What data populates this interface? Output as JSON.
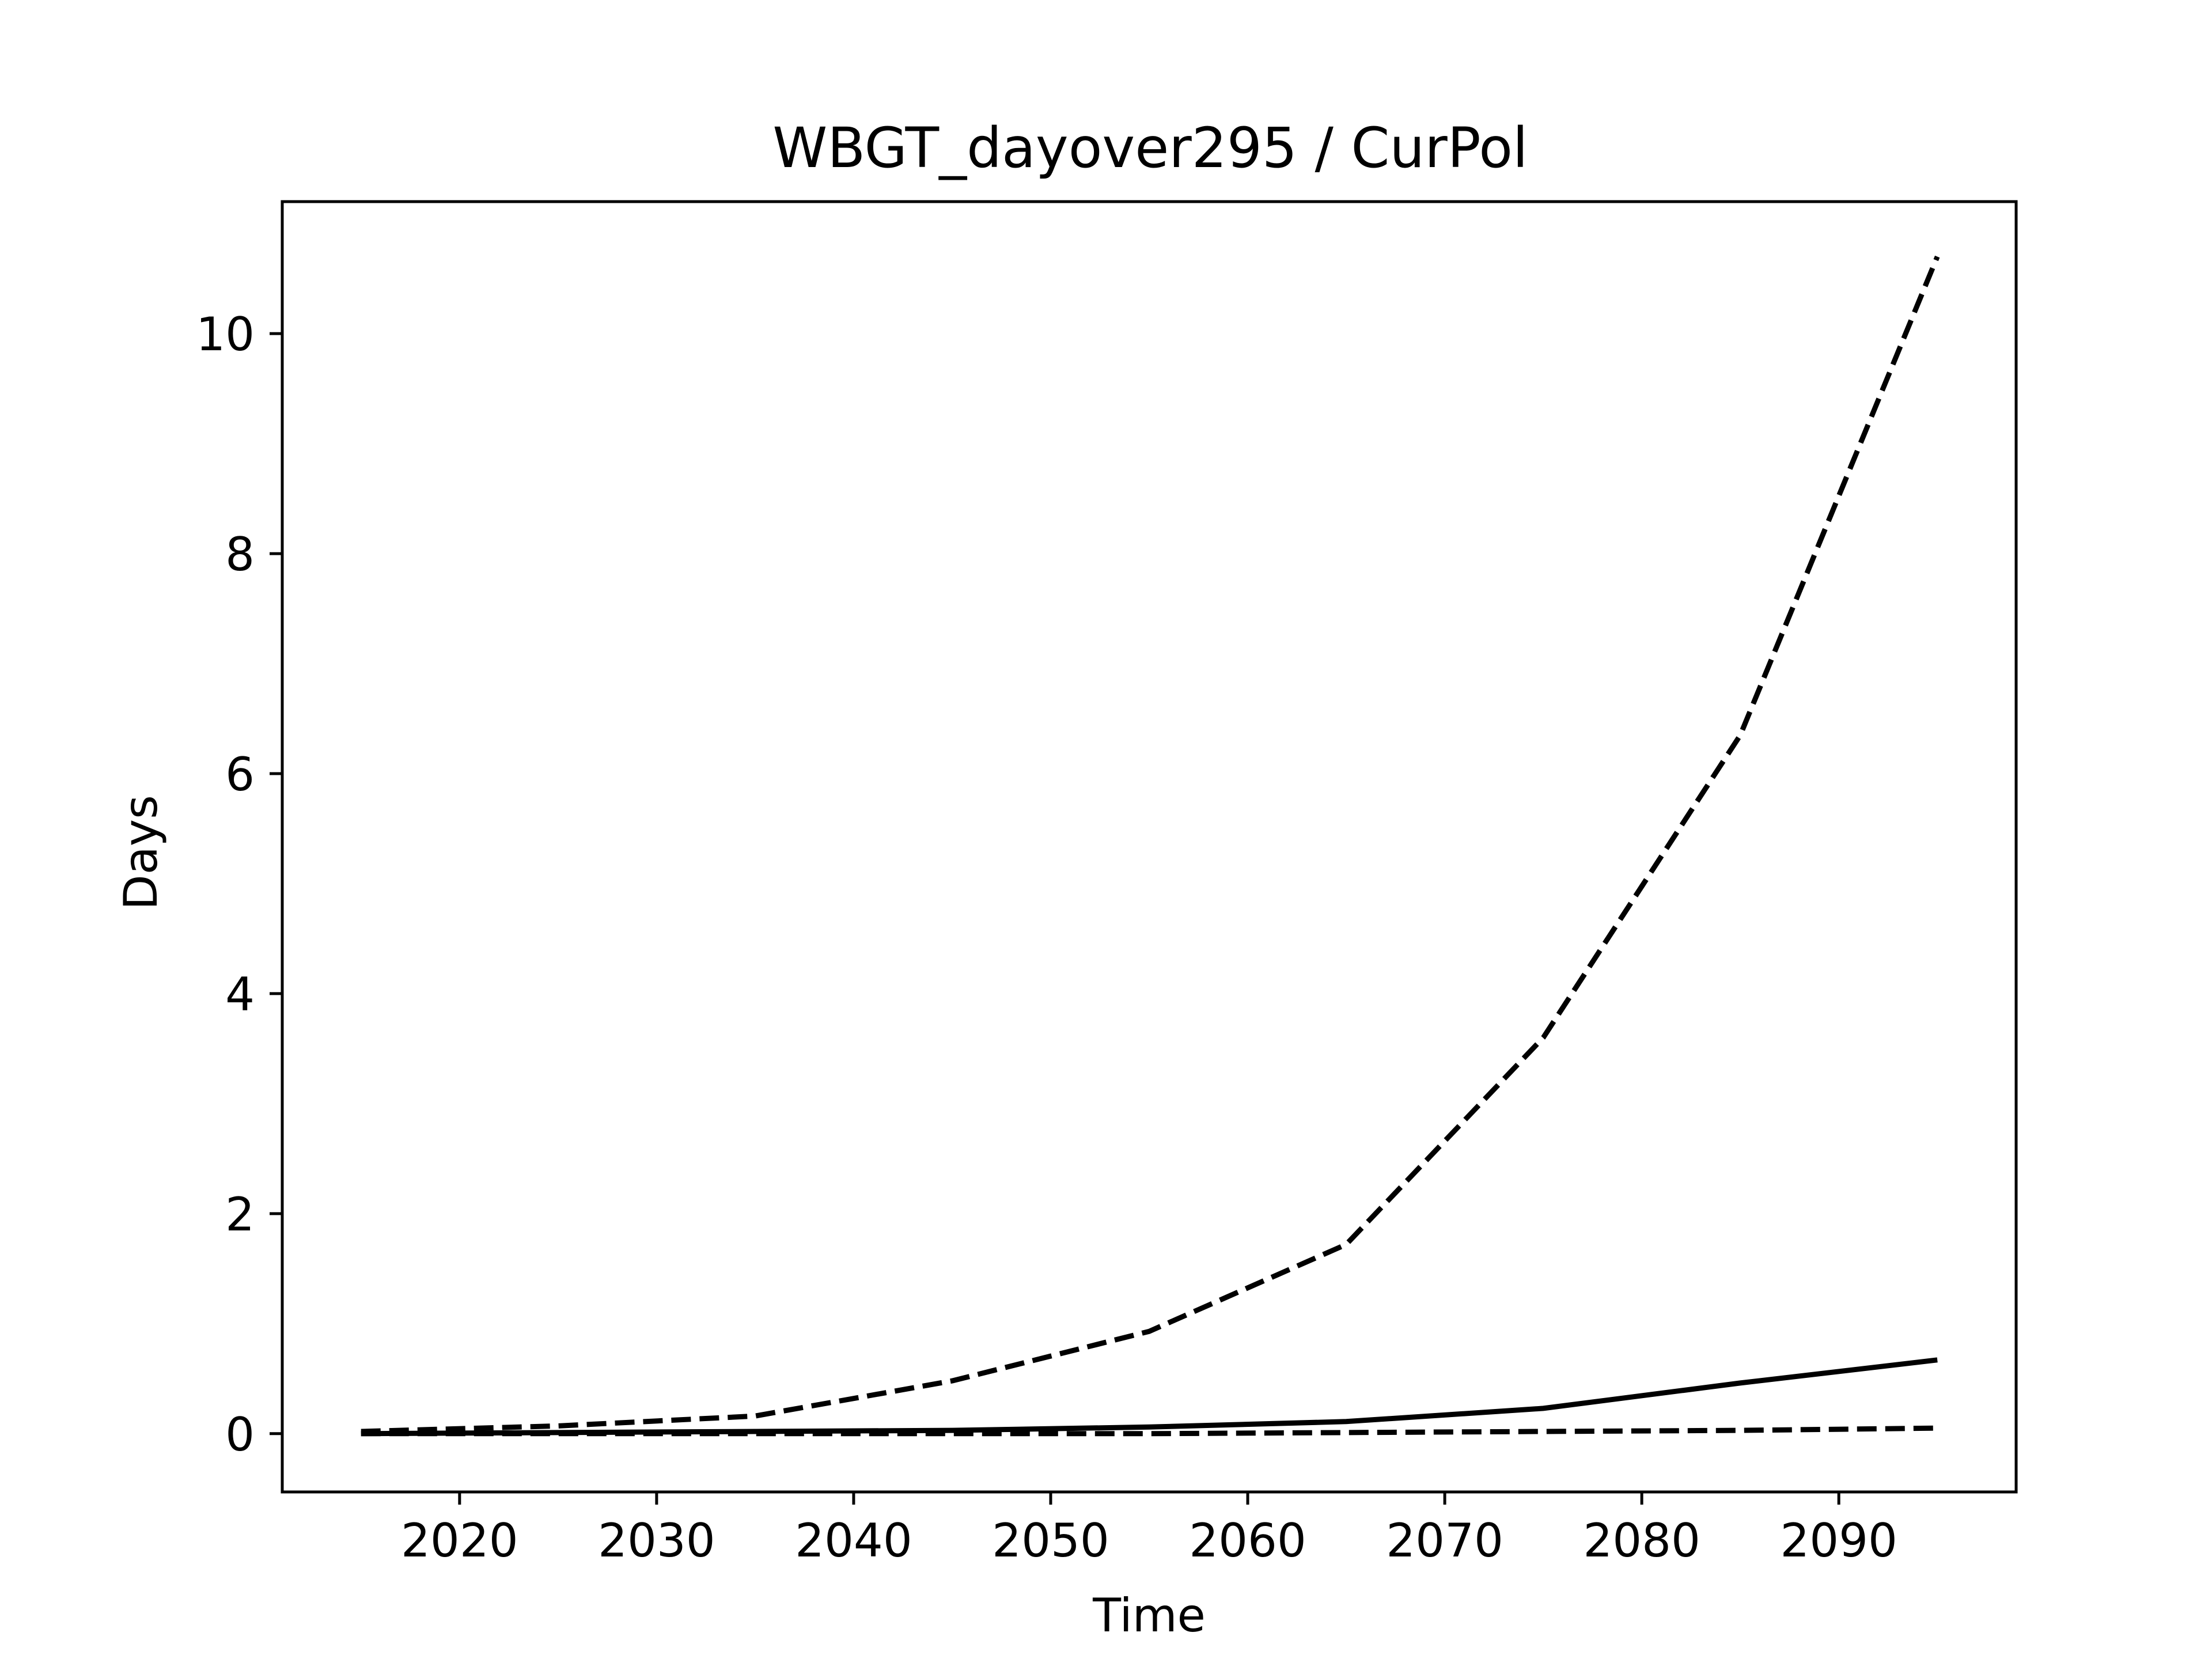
{
  "chart_data": {
    "type": "line",
    "title": "WBGT_dayover295 / CurPol",
    "xlabel": "Time",
    "ylabel": "Days",
    "xlim": [
      2011,
      2099
    ],
    "ylim": [
      -0.53,
      11.2
    ],
    "xticks": [
      2020,
      2030,
      2040,
      2050,
      2060,
      2070,
      2080,
      2090
    ],
    "yticks": [
      0,
      2,
      4,
      6,
      8,
      10
    ],
    "x": [
      2015,
      2025,
      2035,
      2045,
      2055,
      2065,
      2075,
      2085,
      2095
    ],
    "series": [
      {
        "style": "dashed",
        "color": "#000000",
        "values": [
          0.02,
          0.07,
          0.16,
          0.48,
          0.93,
          1.72,
          3.6,
          6.35,
          10.7
        ]
      },
      {
        "style": "solid",
        "color": "#000000",
        "values": [
          0.0,
          0.01,
          0.02,
          0.03,
          0.06,
          0.11,
          0.23,
          0.46,
          0.67
        ]
      },
      {
        "style": "dashed",
        "color": "#000000",
        "values": [
          0.0,
          0.0,
          0.0,
          0.0,
          0.0,
          0.01,
          0.02,
          0.03,
          0.05
        ]
      }
    ],
    "grid": false,
    "legend": "none"
  }
}
